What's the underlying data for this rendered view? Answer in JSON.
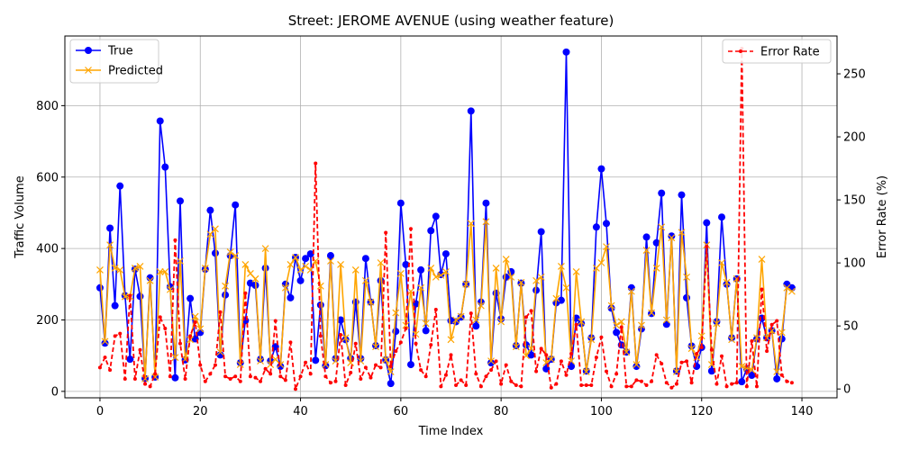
{
  "chart_data": {
    "type": "line",
    "title": "Street: JEROME AVENUE (using weather feature)",
    "xlabel": "Time Index",
    "ylabel_left": "Traffic Volume",
    "ylabel_right": "Error Rate (%)",
    "xlim": [
      -7,
      147
    ],
    "ylim_left": [
      -18,
      995
    ],
    "ylim_right": [
      -7,
      280
    ],
    "x_ticks": [
      0,
      20,
      40,
      60,
      80,
      100,
      120,
      140
    ],
    "y_ticks_left": [
      0,
      200,
      400,
      600,
      800
    ],
    "y_ticks_right": [
      0,
      50,
      100,
      150,
      200,
      250
    ],
    "grid": true,
    "legend_left_position": "top-left",
    "legend_right_position": "top-right",
    "series": [
      {
        "name": "True",
        "axis": "left",
        "color": "#0000ff",
        "marker": "circle",
        "values": [
          290,
          135,
          457,
          240,
          575,
          268,
          90,
          342,
          266,
          36,
          318,
          40,
          757,
          628,
          293,
          38,
          533,
          88,
          260,
          147,
          165,
          342,
          507,
          387,
          102,
          270,
          380,
          522,
          80,
          198,
          303,
          297,
          90,
          345,
          85,
          125,
          70,
          300,
          262,
          375,
          310,
          372,
          385,
          87,
          242,
          72,
          380,
          92,
          200,
          145,
          92,
          250,
          92,
          372,
          250,
          128,
          310,
          88,
          22,
          168,
          527,
          355,
          75,
          245,
          340,
          170,
          450,
          490,
          327,
          385,
          198,
          195,
          208,
          300,
          785,
          183,
          250,
          527,
          80,
          275,
          203,
          320,
          335,
          128,
          303,
          130,
          102,
          283,
          447,
          63,
          90,
          248,
          255,
          950,
          70,
          205,
          190,
          57,
          150,
          460,
          623,
          470,
          233,
          165,
          130,
          110,
          290,
          70,
          175,
          432,
          218,
          416,
          555,
          188,
          435,
          57,
          550,
          262,
          127,
          70,
          123,
          472,
          57,
          195,
          488,
          300,
          150,
          315,
          27,
          63,
          45,
          147,
          205,
          150,
          170,
          35,
          147,
          300,
          290
        ]
      },
      {
        "name": "Predicted",
        "axis": "left",
        "color": "#ffa500",
        "marker": "x",
        "values": [
          340,
          140,
          410,
          345,
          340,
          265,
          265,
          345,
          350,
          35,
          310,
          40,
          335,
          335,
          285,
          95,
          365,
          90,
          145,
          210,
          175,
          345,
          440,
          455,
          110,
          295,
          390,
          380,
          75,
          355,
          330,
          315,
          85,
          400,
          75,
          90,
          75,
          290,
          355,
          375,
          340,
          350,
          340,
          365,
          295,
          75,
          365,
          85,
          355,
          150,
          80,
          340,
          85,
          310,
          250,
          125,
          360,
          88,
          55,
          220,
          330,
          185,
          280,
          160,
          290,
          190,
          345,
          320,
          325,
          335,
          145,
          200,
          210,
          300,
          470,
          200,
          240,
          475,
          85,
          345,
          195,
          370,
          320,
          125,
          305,
          100,
          120,
          310,
          320,
          80,
          90,
          260,
          350,
          290,
          85,
          335,
          195,
          55,
          145,
          345,
          360,
          405,
          240,
          185,
          195,
          110,
          280,
          75,
          185,
          395,
          220,
          345,
          460,
          200,
          430,
          55,
          445,
          320,
          120,
          95,
          155,
          410,
          75,
          190,
          360,
          305,
          145,
          315,
          70,
          65,
          60,
          150,
          370,
          150,
          170,
          55,
          165,
          290,
          280
        ]
      },
      {
        "name": "Error Rate",
        "axis": "right",
        "color": "#ff0000",
        "marker": "dot",
        "dashed": true,
        "values": [
          17,
          25,
          15,
          42,
          44,
          8,
          74,
          8,
          31,
          4,
          2,
          12,
          57,
          48,
          10,
          118,
          36,
          8,
          42,
          53,
          19,
          6,
          12,
          19,
          61,
          10,
          8,
          10,
          6,
          76,
          10,
          9,
          6,
          16,
          12,
          54,
          10,
          7,
          37,
          0,
          10,
          21,
          12,
          179,
          42,
          10,
          5,
          6,
          43,
          3,
          13,
          36,
          8,
          17,
          9,
          19,
          17,
          124,
          18,
          30,
          37,
          48,
          127,
          36,
          15,
          10,
          35,
          63,
          2,
          11,
          27,
          3,
          7,
          3,
          60,
          12,
          2,
          10,
          15,
          22,
          4,
          19,
          6,
          3,
          2,
          57,
          62,
          14,
          32,
          27,
          1,
          4,
          22,
          11,
          28,
          51,
          3,
          3,
          3,
          25,
          41,
          14,
          2,
          12,
          49,
          2,
          2,
          7,
          6,
          3,
          6,
          27,
          20,
          5,
          1,
          4,
          21,
          22,
          5,
          28,
          33,
          113,
          31,
          4,
          26,
          2,
          4,
          5,
          270,
          2,
          38,
          2,
          79,
          30,
          51,
          54,
          11,
          6,
          5
        ]
      }
    ]
  }
}
